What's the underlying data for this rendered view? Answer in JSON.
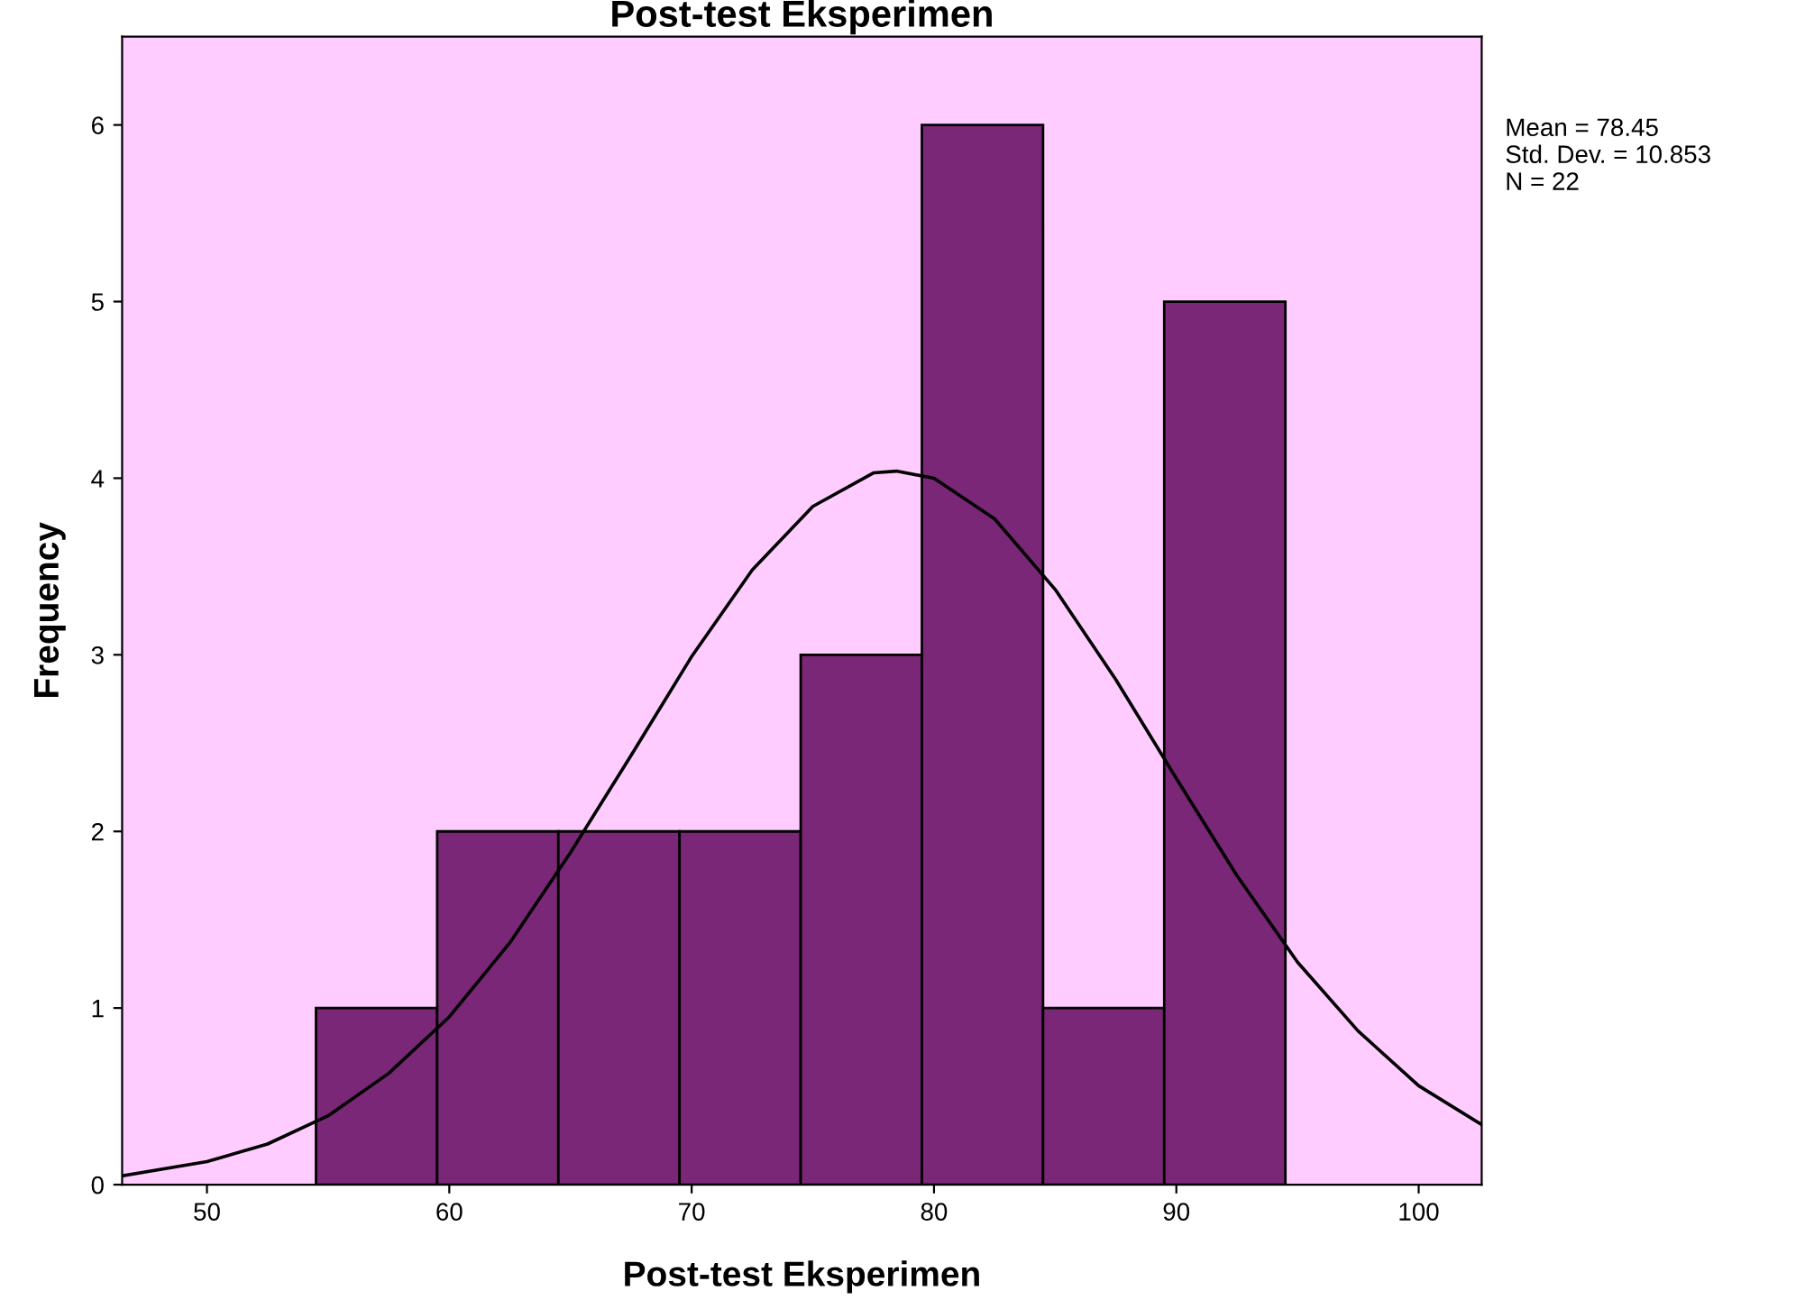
{
  "chart_data": {
    "type": "histogram",
    "title": "Post-test Eksperimen",
    "xlabel": "Post-test Eksperimen",
    "ylabel": "Frequency",
    "bins": [
      54.5,
      59.5,
      64.5,
      69.5,
      74.5,
      79.5,
      84.5,
      89.5,
      94.5
    ],
    "values": [
      1,
      2,
      2,
      2,
      3,
      6,
      1,
      5
    ],
    "color": "#7b2777",
    "series": [
      {
        "type": "line",
        "color": "#000000",
        "x": [
          46.5,
          50,
          52.5,
          55,
          57.5,
          60,
          62.5,
          65,
          67.5,
          70,
          72.5,
          75,
          77.5,
          78.45,
          80,
          82.5,
          85,
          87.5,
          90,
          92.5,
          95,
          97.5,
          100,
          102.6
        ],
        "values": [
          0.05,
          0.13,
          0.23,
          0.39,
          0.63,
          0.95,
          1.37,
          1.88,
          2.43,
          2.99,
          3.48,
          3.84,
          4.03,
          4.04,
          4.0,
          3.77,
          3.37,
          2.86,
          2.3,
          1.75,
          1.26,
          0.87,
          0.56,
          0.34
        ]
      }
    ],
    "xlim": [
      46.5,
      102.6
    ],
    "ylim": [
      0,
      6.5
    ],
    "xticks": [
      50,
      60,
      70,
      80,
      90,
      100
    ],
    "yticks": [
      0,
      1,
      2,
      3,
      4,
      5,
      6
    ],
    "annotations": [
      "Mean = 78.45\nStd. Dev. = 10.853\nN = 22"
    ]
  }
}
